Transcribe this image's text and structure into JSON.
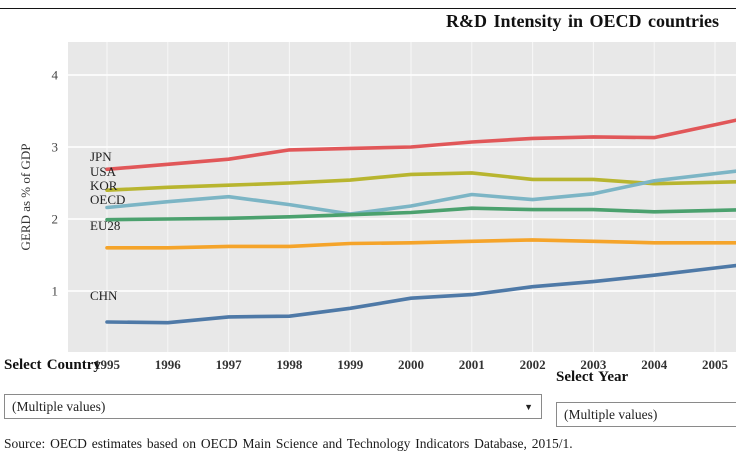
{
  "header": {
    "title": "R&D Intensity in OECD countries"
  },
  "chart_data": {
    "type": "line",
    "title": "R&D Intensity in OECD countries",
    "xlabel": "",
    "ylabel": "GERD as % of GDP",
    "x": [
      1995,
      1996,
      1997,
      1998,
      1999,
      2000,
      2001,
      2002,
      2003,
      2004,
      2005
    ],
    "yticks": [
      1,
      2,
      3,
      4
    ],
    "ylim": [
      0.15,
      4.46
    ],
    "grid": true,
    "legend_position": "inline-left-of-lines",
    "series": [
      {
        "name": "JPN",
        "color": "#e15759",
        "values": [
          2.69,
          2.76,
          2.83,
          2.96,
          2.98,
          3.0,
          3.07,
          3.12,
          3.14,
          3.13,
          3.31
        ]
      },
      {
        "name": "USA",
        "color": "#b8b52f",
        "values": [
          2.4,
          2.44,
          2.47,
          2.5,
          2.54,
          2.62,
          2.64,
          2.55,
          2.55,
          2.49,
          2.51
        ]
      },
      {
        "name": "KOR",
        "color": "#7cb5c5",
        "values": [
          2.16,
          2.24,
          2.31,
          2.2,
          2.07,
          2.18,
          2.34,
          2.27,
          2.35,
          2.53,
          2.63
        ]
      },
      {
        "name": "OECD",
        "color": "#4ba16e",
        "values": [
          1.99,
          2.0,
          2.01,
          2.03,
          2.06,
          2.09,
          2.15,
          2.13,
          2.13,
          2.1,
          2.12
        ]
      },
      {
        "name": "EU28",
        "color": "#f5a42a",
        "values": [
          1.6,
          1.6,
          1.62,
          1.62,
          1.66,
          1.67,
          1.69,
          1.71,
          1.69,
          1.67,
          1.67
        ]
      },
      {
        "name": "CHN",
        "color": "#4e79a7",
        "values": [
          0.57,
          0.56,
          0.64,
          0.65,
          0.76,
          0.9,
          0.95,
          1.06,
          1.13,
          1.22,
          1.32
        ]
      }
    ]
  },
  "filters": {
    "country": {
      "label": "Select Country",
      "value": "(Multiple values)"
    },
    "year": {
      "label": "Select Year",
      "value": "(Multiple values)"
    }
  },
  "footer": {
    "source": "Source: OECD estimates based on OECD Main Science and Technology Indicators Database, 2015/1."
  }
}
